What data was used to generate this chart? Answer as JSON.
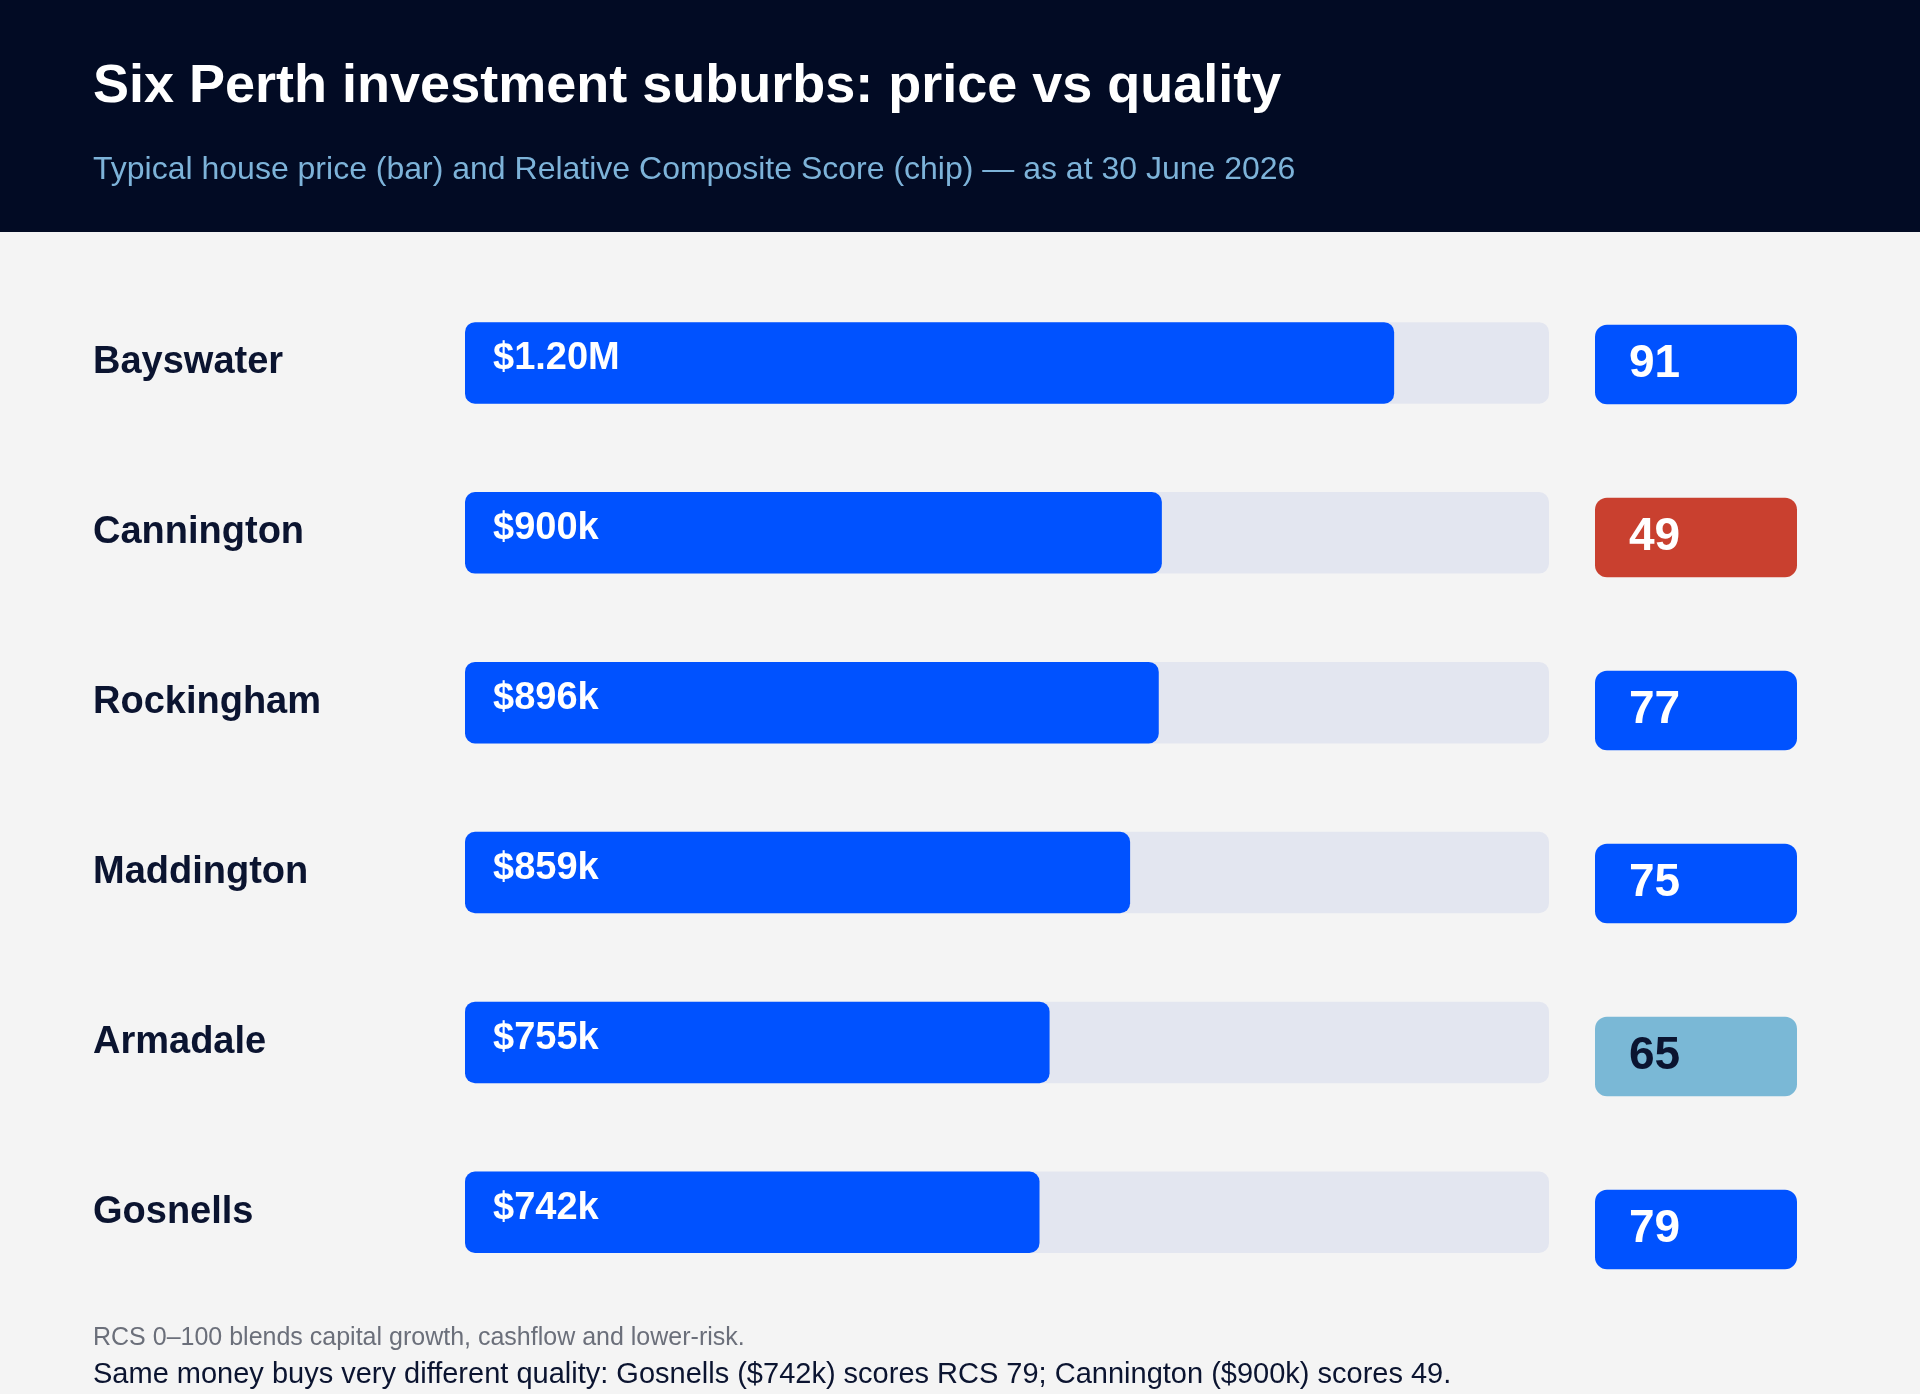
{
  "chart_data": [
    {
      "type": "bar",
      "orientation": "horizontal",
      "title": "Six Perth investment suburbs: price vs quality",
      "subtitle": "Typical house price (bar) and Relative Composite Score (chip) — as at 30 June 2026",
      "categories": [
        "Bayswater",
        "Cannington",
        "Rockingham",
        "Maddington",
        "Armadale",
        "Gosnells"
      ],
      "values": [
        1200000,
        900000,
        896000,
        859000,
        755000,
        742000
      ],
      "value_labels": [
        "$1.20M",
        "$900k",
        "$896k",
        "$859k",
        "$755k",
        "$742k"
      ],
      "color": "#0052ff",
      "tick_labels": "y",
      "grid": false,
      "legend": false,
      "annotations": [
        "RCS 0–100 blends capital growth, cashflow and lower-risk.",
        "Same money buys very different quality: Gosnells ($742k) scores RCS 79; Cannington ($900k) scores 49."
      ]
    },
    {
      "type": "other",
      "values": [
        91,
        49,
        77,
        75,
        65,
        79
      ],
      "colors": [
        "#0052ff",
        "#c9402f",
        "#0052ff",
        "#0052ff",
        "#7ab8d6",
        "#0052ff"
      ],
      "data_labels": true
    }
  ]
}
